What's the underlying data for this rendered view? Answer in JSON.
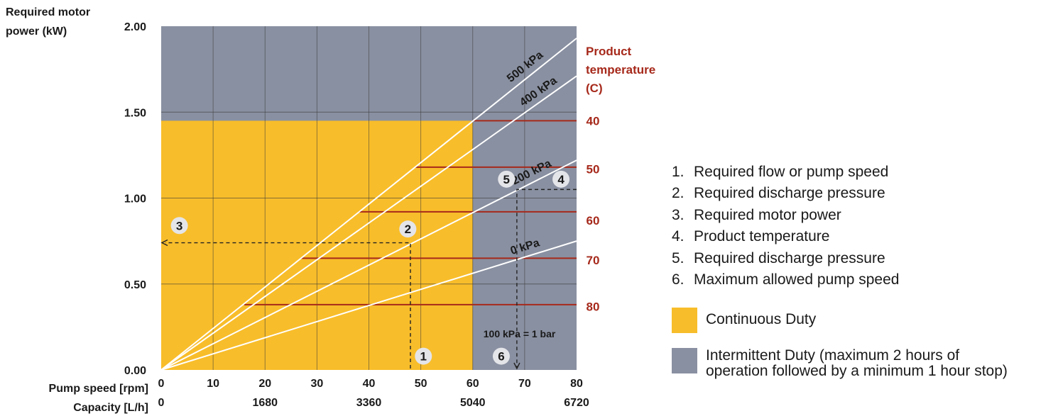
{
  "chart_data": {
    "type": "line",
    "ylabel": [
      "Required motor",
      "power (kW)"
    ],
    "xlabel_speed": "Pump speed [rpm]",
    "xlabel_capacity": "Capacity [L/h]",
    "ylim": [
      0,
      2.0
    ],
    "xlim": [
      0,
      80
    ],
    "y_ticks": [
      "0.00",
      "0.50",
      "1.00",
      "1.50",
      "2.00"
    ],
    "y_tick_values": [
      0,
      0.5,
      1.0,
      1.5,
      2.0
    ],
    "x_ticks_speed": [
      "0",
      "10",
      "20",
      "30",
      "40",
      "50",
      "60",
      "70",
      "80"
    ],
    "x_tick_values": [
      0,
      10,
      20,
      30,
      40,
      50,
      60,
      70,
      80
    ],
    "x_ticks_capacity": [
      "0",
      "1680",
      "3360",
      "5040",
      "6720"
    ],
    "x_capacity_positions": [
      0,
      20,
      40,
      60,
      80
    ],
    "regions": {
      "continuous": {
        "x": [
          0,
          60
        ],
        "y": [
          0,
          1.45
        ],
        "color": "#f8bd2a"
      },
      "intermittent_color": "#8990a1"
    },
    "series": [
      {
        "name": "0 kPa",
        "x": [
          0,
          80
        ],
        "y": [
          0,
          0.75
        ]
      },
      {
        "name": "200 kPa",
        "x": [
          0,
          80
        ],
        "y": [
          0,
          1.22
        ]
      },
      {
        "name": "400 kPa",
        "x": [
          0,
          80
        ],
        "y": [
          0,
          1.71
        ]
      },
      {
        "name": "500 kPa",
        "x": [
          0,
          80
        ],
        "y": [
          0,
          1.93
        ]
      }
    ],
    "temperature_title": [
      "Product",
      "temperature",
      "(C)"
    ],
    "temperature_lines": [
      {
        "label": "40",
        "y": 1.45,
        "x_start": 60,
        "label_y": 1.45
      },
      {
        "label": "50",
        "y": 1.18,
        "x_start": 49,
        "label_y": 1.17
      },
      {
        "label": "60",
        "y": 0.92,
        "x_start": 38,
        "label_y": 0.87
      },
      {
        "label": "70",
        "y": 0.65,
        "x_start": 27,
        "label_y": 0.64
      },
      {
        "label": "80",
        "y": 0.38,
        "x_start": 16,
        "label_y": 0.37
      }
    ],
    "example_path": {
      "x": 48,
      "y": 0.74,
      "x_max": 68.5,
      "y_temp": 1.05
    },
    "markers": [
      {
        "label": "1",
        "x": 50.5,
        "y": 0.08
      },
      {
        "label": "2",
        "x": 47.5,
        "y": 0.82
      },
      {
        "label": "3",
        "x": 3.5,
        "y": 0.84
      },
      {
        "label": "4",
        "x": 77,
        "y": 1.11
      },
      {
        "label": "5",
        "x": 66.5,
        "y": 1.11
      },
      {
        "label": "6",
        "x": 65.5,
        "y": 0.08
      }
    ],
    "annotation": "100 kPa = 1 bar",
    "temp_color": "#a6291b"
  },
  "legend": {
    "items": [
      {
        "num": "1.",
        "text": "Required flow or pump speed"
      },
      {
        "num": "2.",
        "text": "Required discharge pressure"
      },
      {
        "num": "3.",
        "text": "Required motor power"
      },
      {
        "num": "4.",
        "text": "Product temperature"
      },
      {
        "num": "5.",
        "text": "Required discharge pressure"
      },
      {
        "num": "6.",
        "text": "Maximum allowed pump speed"
      }
    ],
    "continuous": "Continuous Duty",
    "intermittent": [
      "Intermittent Duty (maximum 2 hours of",
      "operation followed by a minimum 1 hour stop)"
    ]
  }
}
